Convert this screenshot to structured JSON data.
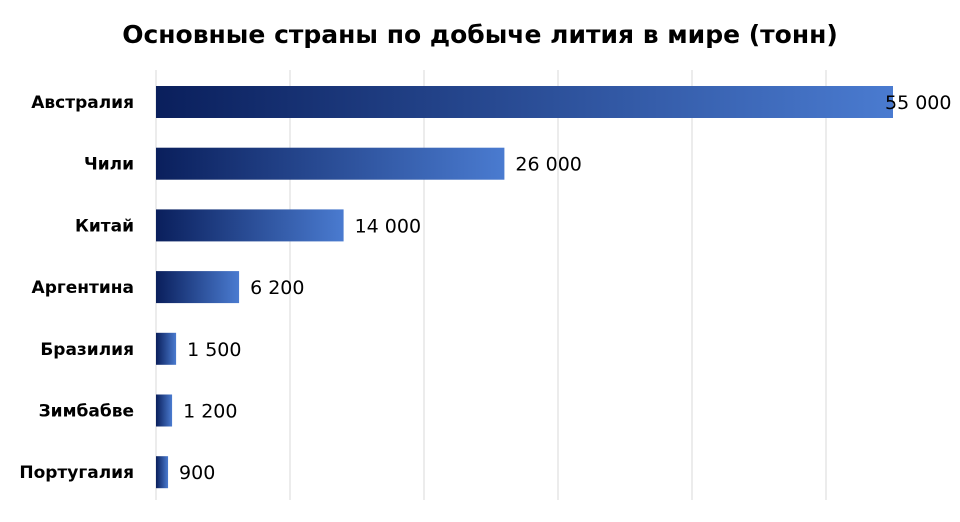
{
  "chart_data": {
    "type": "bar",
    "orientation": "horizontal",
    "title": "Основные страны по добыче лития в мире (тонн)",
    "categories": [
      "Австралия",
      "Чили",
      "Китай",
      "Аргентина",
      "Бразилия",
      "Зимбабве",
      "Португалия"
    ],
    "values": [
      55000,
      26000,
      14000,
      6200,
      1500,
      1200,
      900
    ],
    "value_labels": [
      "55 000",
      "26 000",
      "14 000",
      "6 200",
      "1 500",
      "1 200",
      "900"
    ],
    "xlim": [
      0,
      55000
    ],
    "grid": true,
    "legend": "none",
    "colors": {
      "bar_start": "#0a1f5c",
      "bar_end": "#4a7bd0",
      "grid": "#d9d9d9"
    }
  }
}
